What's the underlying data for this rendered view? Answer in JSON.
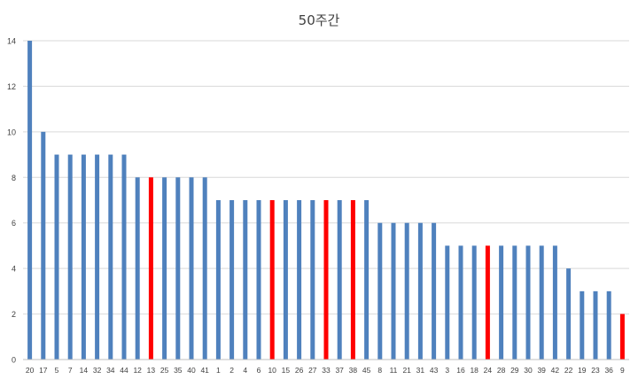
{
  "chart_data": {
    "type": "bar",
    "title": "50주간",
    "xlabel": "",
    "ylabel": "",
    "ylim": [
      0,
      14
    ],
    "yticks": [
      0,
      2,
      4,
      6,
      8,
      10,
      12,
      14
    ],
    "grid": true,
    "legend": "none",
    "colors": {
      "default": "#4f81bd",
      "highlight": "#ff0000",
      "grid": "#d9d9d9",
      "axis": "#bfbfbf"
    },
    "categories": [
      "20",
      "17",
      "5",
      "7",
      "14",
      "32",
      "34",
      "44",
      "12",
      "13",
      "25",
      "35",
      "40",
      "41",
      "1",
      "2",
      "4",
      "6",
      "10",
      "15",
      "26",
      "27",
      "33",
      "37",
      "38",
      "45",
      "8",
      "11",
      "21",
      "31",
      "43",
      "3",
      "16",
      "18",
      "24",
      "28",
      "29",
      "30",
      "39",
      "42",
      "22",
      "19",
      "23",
      "36",
      "9"
    ],
    "values": [
      14,
      10,
      9,
      9,
      9,
      9,
      9,
      9,
      8,
      8,
      8,
      8,
      8,
      8,
      7,
      7,
      7,
      7,
      7,
      7,
      7,
      7,
      7,
      7,
      7,
      7,
      6,
      6,
      6,
      6,
      6,
      5,
      5,
      5,
      5,
      5,
      5,
      5,
      5,
      5,
      4,
      3,
      3,
      3,
      2
    ],
    "highlighted": [
      "13",
      "10",
      "33",
      "38",
      "24",
      "9"
    ]
  }
}
